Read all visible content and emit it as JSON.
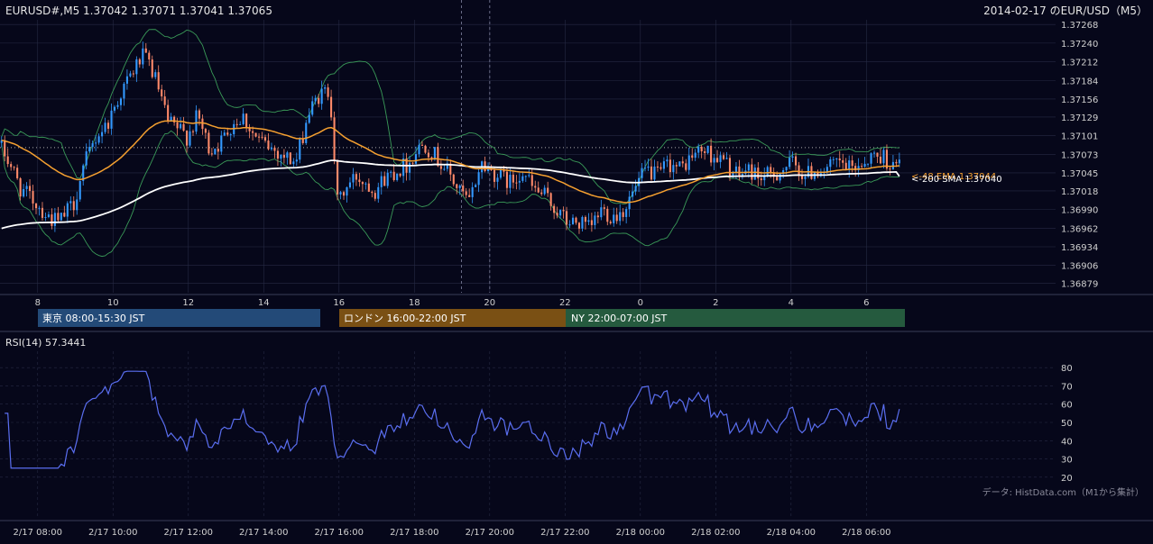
{
  "header": {
    "symbol_ohlc": "EURUSD#,M5 1.37042 1.37071 1.37041 1.37065",
    "chart_title": "2014-02-17 のEUR/USD（M5）"
  },
  "sessions": [
    {
      "label": "東京 08:00-15:30 JST",
      "color": "#234a78"
    },
    {
      "label": "ロンドン 16:00-22:00 JST",
      "color": "#7a5014"
    },
    {
      "label": "NY 22:00-07:00 JST",
      "color": "#255a3e"
    }
  ],
  "rsi_label": "RSI(14) 57.3441",
  "attribution": "データ: HistData.com（M1から集計）",
  "colors": {
    "background": "#06071a",
    "bull": "#3399ff",
    "bear": "#ff8a6a",
    "ema": "#f5a030",
    "sma": "#ffffff",
    "bollinger": "#3a9a58",
    "rsi": "#5a6ef0",
    "grid": "#262a44"
  },
  "chart_data": [
    {
      "type": "candlestick",
      "symbol": "EURUSD",
      "timeframe": "M5",
      "ylim": [
        1.36865,
        1.37275
      ],
      "y_ticks": [
        "1.37268",
        "1.37240",
        "1.37212",
        "1.37184",
        "1.37156",
        "1.37129",
        "1.37101",
        "1.37073",
        "1.37045",
        "1.37018",
        "1.36990",
        "1.36962",
        "1.36934",
        "1.36906",
        "1.36879"
      ],
      "x_ticks": [
        "8",
        "10",
        "12",
        "14",
        "16",
        "18",
        "20",
        "22",
        "0",
        "2",
        "4",
        "6"
      ],
      "x_tick_hours": [
        8,
        10,
        12,
        14,
        16,
        18,
        20,
        22,
        24,
        26,
        28,
        30
      ],
      "x_range_hours": [
        7.0,
        30.95
      ],
      "last_close": 1.37065,
      "close_series": {
        "hours": [
          7.0,
          7.3,
          7.6,
          8.0,
          8.3,
          8.6,
          9.0,
          9.3,
          9.6,
          9.9,
          10.2,
          10.5,
          10.8,
          11.0,
          11.2,
          11.5,
          11.8,
          12.0,
          12.3,
          12.6,
          12.9,
          13.2,
          13.5,
          13.8,
          14.0,
          14.3,
          14.6,
          14.9,
          15.2,
          15.5,
          15.8,
          16.0,
          16.2,
          16.5,
          16.8,
          17.0,
          17.3,
          17.6,
          17.9,
          18.1,
          18.3,
          18.6,
          18.9,
          19.2,
          19.5,
          19.8,
          20.0,
          20.3,
          20.6,
          20.9,
          21.2,
          21.5,
          21.8,
          22.1,
          22.4,
          22.7,
          23.0,
          23.3,
          23.6,
          23.9,
          24.2,
          24.5,
          24.8,
          25.1,
          25.4,
          25.7,
          26.0,
          26.3,
          26.6,
          26.9,
          27.2,
          27.5,
          27.8,
          28.1,
          28.4,
          28.7,
          29.0,
          29.3,
          29.6,
          29.9,
          30.2,
          30.5,
          30.8,
          30.95
        ],
        "close": [
          1.3709,
          1.3706,
          1.3702,
          1.37,
          1.3698,
          1.3697,
          1.37,
          1.3706,
          1.371,
          1.3712,
          1.3716,
          1.3719,
          1.3722,
          1.3721,
          1.3718,
          1.3712,
          1.3711,
          1.371,
          1.3713,
          1.3708,
          1.3709,
          1.3712,
          1.3713,
          1.371,
          1.3709,
          1.3708,
          1.3707,
          1.3706,
          1.3713,
          1.3716,
          1.3717,
          1.37,
          1.3702,
          1.3704,
          1.3703,
          1.3702,
          1.3704,
          1.3705,
          1.3706,
          1.3708,
          1.3709,
          1.3707,
          1.3705,
          1.3702,
          1.37,
          1.3706,
          1.3705,
          1.3704,
          1.3703,
          1.3705,
          1.3702,
          1.3701,
          1.3699,
          1.3697,
          1.3697,
          1.3696,
          1.3699,
          1.3698,
          1.3699,
          1.3702,
          1.3705,
          1.3704,
          1.3706,
          1.3705,
          1.3707,
          1.3708,
          1.3707,
          1.3706,
          1.3704,
          1.3705,
          1.3704,
          1.3704,
          1.3705,
          1.3706,
          1.3704,
          1.3705,
          1.3705,
          1.3706,
          1.3705,
          1.3706,
          1.3707,
          1.3707,
          1.3705,
          1.37065
        ]
      },
      "indicators": [
        {
          "name": "48 EMA",
          "label": "<-48 EMA 1.37044",
          "last": 1.37044
        },
        {
          "name": "200 SMA",
          "label": "<-200 SMA 1.37040",
          "last": 1.3704
        },
        {
          "name": "Bollinger Bands"
        }
      ]
    },
    {
      "type": "line",
      "name": "RSI(14)",
      "last": 57.3441,
      "ylim": [
        15,
        85
      ],
      "y_ticks": [
        80,
        70,
        60,
        50,
        40,
        30,
        20
      ],
      "x_range_hours": [
        7.0,
        30.95
      ],
      "x_tick_labels": [
        "2/17 08:00",
        "2/17 10:00",
        "2/17 12:00",
        "2/17 14:00",
        "2/17 16:00",
        "2/17 18:00",
        "2/17 20:00",
        "2/17 22:00",
        "2/18 00:00",
        "2/18 02:00",
        "2/18 04:00",
        "2/18 06:00"
      ],
      "x_tick_hours": [
        8,
        10,
        12,
        14,
        16,
        18,
        20,
        22,
        24,
        26,
        28,
        30
      ]
    }
  ]
}
